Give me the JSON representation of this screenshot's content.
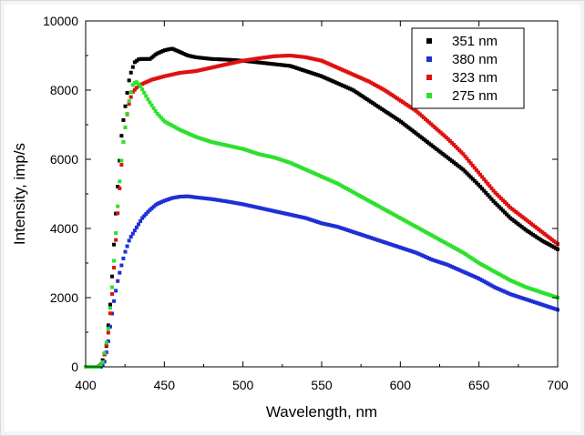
{
  "chart_data": {
    "type": "scatter",
    "title": "",
    "xlabel": "Wavelength, nm",
    "ylabel": "Intensity, imp/s",
    "xlim": [
      400,
      700
    ],
    "ylim": [
      0,
      10000
    ],
    "x_ticks": [
      "400",
      "450",
      "500",
      "550",
      "600",
      "650",
      "700"
    ],
    "y_ticks": [
      "0",
      "2000",
      "4000",
      "6000",
      "8000",
      "10000"
    ],
    "legend_position": "top-right",
    "grid": false,
    "series": [
      {
        "name": "351 nm",
        "color": "#000000",
        "points": [
          [
            400,
            0
          ],
          [
            408,
            0
          ],
          [
            410,
            80
          ],
          [
            413,
            500
          ],
          [
            416,
            2000
          ],
          [
            419,
            4300
          ],
          [
            421,
            5600
          ],
          [
            423,
            6800
          ],
          [
            426,
            7800
          ],
          [
            428,
            8400
          ],
          [
            431,
            8800
          ],
          [
            434,
            8900
          ],
          [
            438,
            8900
          ],
          [
            441,
            8900
          ],
          [
            445,
            9050
          ],
          [
            450,
            9150
          ],
          [
            455,
            9200
          ],
          [
            460,
            9100
          ],
          [
            465,
            9000
          ],
          [
            470,
            8950
          ],
          [
            480,
            8900
          ],
          [
            490,
            8880
          ],
          [
            500,
            8850
          ],
          [
            510,
            8800
          ],
          [
            520,
            8750
          ],
          [
            530,
            8700
          ],
          [
            540,
            8550
          ],
          [
            550,
            8400
          ],
          [
            560,
            8200
          ],
          [
            570,
            8000
          ],
          [
            580,
            7700
          ],
          [
            590,
            7400
          ],
          [
            600,
            7100
          ],
          [
            610,
            6750
          ],
          [
            620,
            6400
          ],
          [
            630,
            6050
          ],
          [
            640,
            5700
          ],
          [
            650,
            5250
          ],
          [
            660,
            4750
          ],
          [
            670,
            4300
          ],
          [
            680,
            3950
          ],
          [
            690,
            3650
          ],
          [
            700,
            3400
          ]
        ]
      },
      {
        "name": "380 nm",
        "color": "#1f2fd6",
        "points": [
          [
            400,
            0
          ],
          [
            410,
            0
          ],
          [
            412,
            150
          ],
          [
            414,
            600
          ],
          [
            416,
            1300
          ],
          [
            418,
            1900
          ],
          [
            420,
            2400
          ],
          [
            422,
            2800
          ],
          [
            425,
            3300
          ],
          [
            428,
            3700
          ],
          [
            432,
            4000
          ],
          [
            436,
            4300
          ],
          [
            440,
            4500
          ],
          [
            445,
            4700
          ],
          [
            450,
            4800
          ],
          [
            455,
            4880
          ],
          [
            460,
            4920
          ],
          [
            465,
            4930
          ],
          [
            470,
            4900
          ],
          [
            480,
            4850
          ],
          [
            490,
            4780
          ],
          [
            500,
            4700
          ],
          [
            510,
            4600
          ],
          [
            520,
            4500
          ],
          [
            530,
            4400
          ],
          [
            540,
            4300
          ],
          [
            550,
            4150
          ],
          [
            560,
            4050
          ],
          [
            570,
            3900
          ],
          [
            580,
            3750
          ],
          [
            590,
            3600
          ],
          [
            600,
            3450
          ],
          [
            610,
            3300
          ],
          [
            620,
            3100
          ],
          [
            630,
            2950
          ],
          [
            640,
            2750
          ],
          [
            650,
            2550
          ],
          [
            660,
            2300
          ],
          [
            670,
            2100
          ],
          [
            680,
            1950
          ],
          [
            690,
            1800
          ],
          [
            700,
            1650
          ]
        ]
      },
      {
        "name": "323 nm",
        "color": "#e01010",
        "points": [
          [
            400,
            0
          ],
          [
            409,
            0
          ],
          [
            411,
            150
          ],
          [
            414,
            800
          ],
          [
            417,
            2200
          ],
          [
            420,
            4200
          ],
          [
            422,
            5400
          ],
          [
            424,
            6500
          ],
          [
            426,
            7200
          ],
          [
            428,
            7700
          ],
          [
            430,
            7950
          ],
          [
            433,
            8100
          ],
          [
            437,
            8200
          ],
          [
            442,
            8300
          ],
          [
            450,
            8400
          ],
          [
            460,
            8500
          ],
          [
            470,
            8550
          ],
          [
            480,
            8650
          ],
          [
            490,
            8750
          ],
          [
            500,
            8850
          ],
          [
            510,
            8920
          ],
          [
            520,
            8980
          ],
          [
            530,
            9000
          ],
          [
            540,
            8950
          ],
          [
            550,
            8850
          ],
          [
            560,
            8650
          ],
          [
            570,
            8450
          ],
          [
            580,
            8250
          ],
          [
            590,
            8000
          ],
          [
            600,
            7700
          ],
          [
            610,
            7400
          ],
          [
            620,
            7000
          ],
          [
            630,
            6600
          ],
          [
            640,
            6150
          ],
          [
            650,
            5600
          ],
          [
            660,
            5050
          ],
          [
            670,
            4600
          ],
          [
            680,
            4250
          ],
          [
            690,
            3900
          ],
          [
            700,
            3550
          ]
        ]
      },
      {
        "name": "275 nm",
        "color": "#2ee02e",
        "points": [
          [
            400,
            0
          ],
          [
            409,
            0
          ],
          [
            411,
            150
          ],
          [
            414,
            900
          ],
          [
            417,
            2400
          ],
          [
            420,
            4400
          ],
          [
            422,
            5600
          ],
          [
            424,
            6500
          ],
          [
            426,
            7200
          ],
          [
            428,
            7800
          ],
          [
            430,
            8150
          ],
          [
            432,
            8250
          ],
          [
            435,
            8100
          ],
          [
            440,
            7700
          ],
          [
            445,
            7350
          ],
          [
            450,
            7100
          ],
          [
            460,
            6850
          ],
          [
            470,
            6650
          ],
          [
            480,
            6500
          ],
          [
            490,
            6400
          ],
          [
            500,
            6300
          ],
          [
            510,
            6150
          ],
          [
            520,
            6050
          ],
          [
            530,
            5900
          ],
          [
            540,
            5700
          ],
          [
            550,
            5500
          ],
          [
            560,
            5300
          ],
          [
            570,
            5050
          ],
          [
            580,
            4800
          ],
          [
            590,
            4550
          ],
          [
            600,
            4300
          ],
          [
            610,
            4050
          ],
          [
            620,
            3800
          ],
          [
            630,
            3550
          ],
          [
            640,
            3300
          ],
          [
            650,
            3000
          ],
          [
            660,
            2750
          ],
          [
            670,
            2500
          ],
          [
            680,
            2300
          ],
          [
            690,
            2150
          ],
          [
            700,
            2000
          ]
        ]
      }
    ]
  }
}
